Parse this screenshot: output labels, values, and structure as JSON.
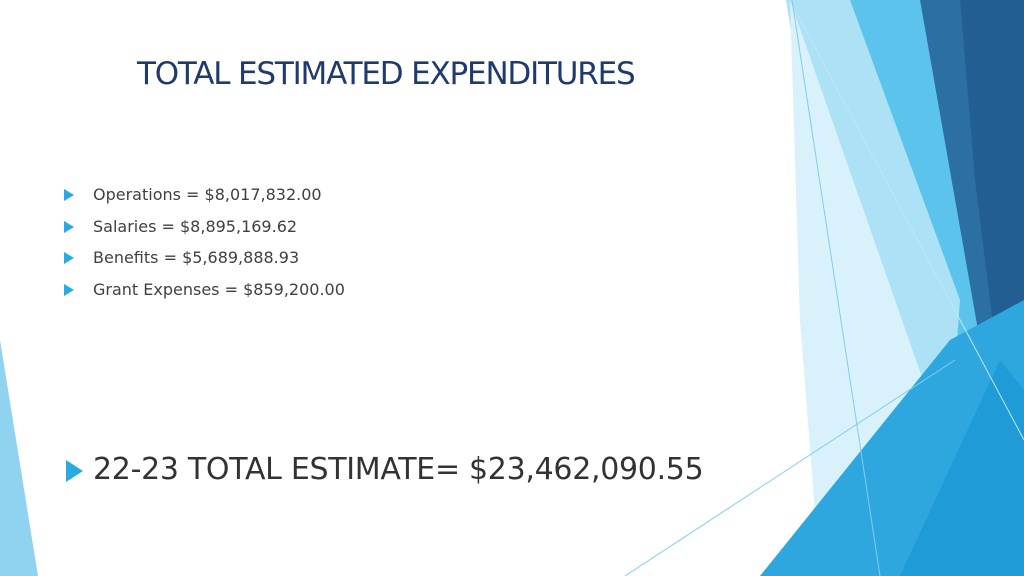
{
  "slide": {
    "title": "TOTAL ESTIMATED EXPENDITURES",
    "bullets": [
      {
        "label": "Operations = $8,017,832.00"
      },
      {
        "label": "Salaries = $8,895,169.62"
      },
      {
        "label": "Benefits = $5,689,888.93"
      },
      {
        "label": "Grant Expenses = $859,200.00"
      }
    ],
    "total": "22-23 TOTAL ESTIMATE= $23,462,090.55"
  },
  "colors": {
    "title": "#1f3a6e",
    "bullet_arrow": "#29abe2",
    "body_text": "#404040",
    "accent_light": "#8fd3f0",
    "accent_mid": "#29abe2",
    "accent_dark": "#1f5f94"
  }
}
